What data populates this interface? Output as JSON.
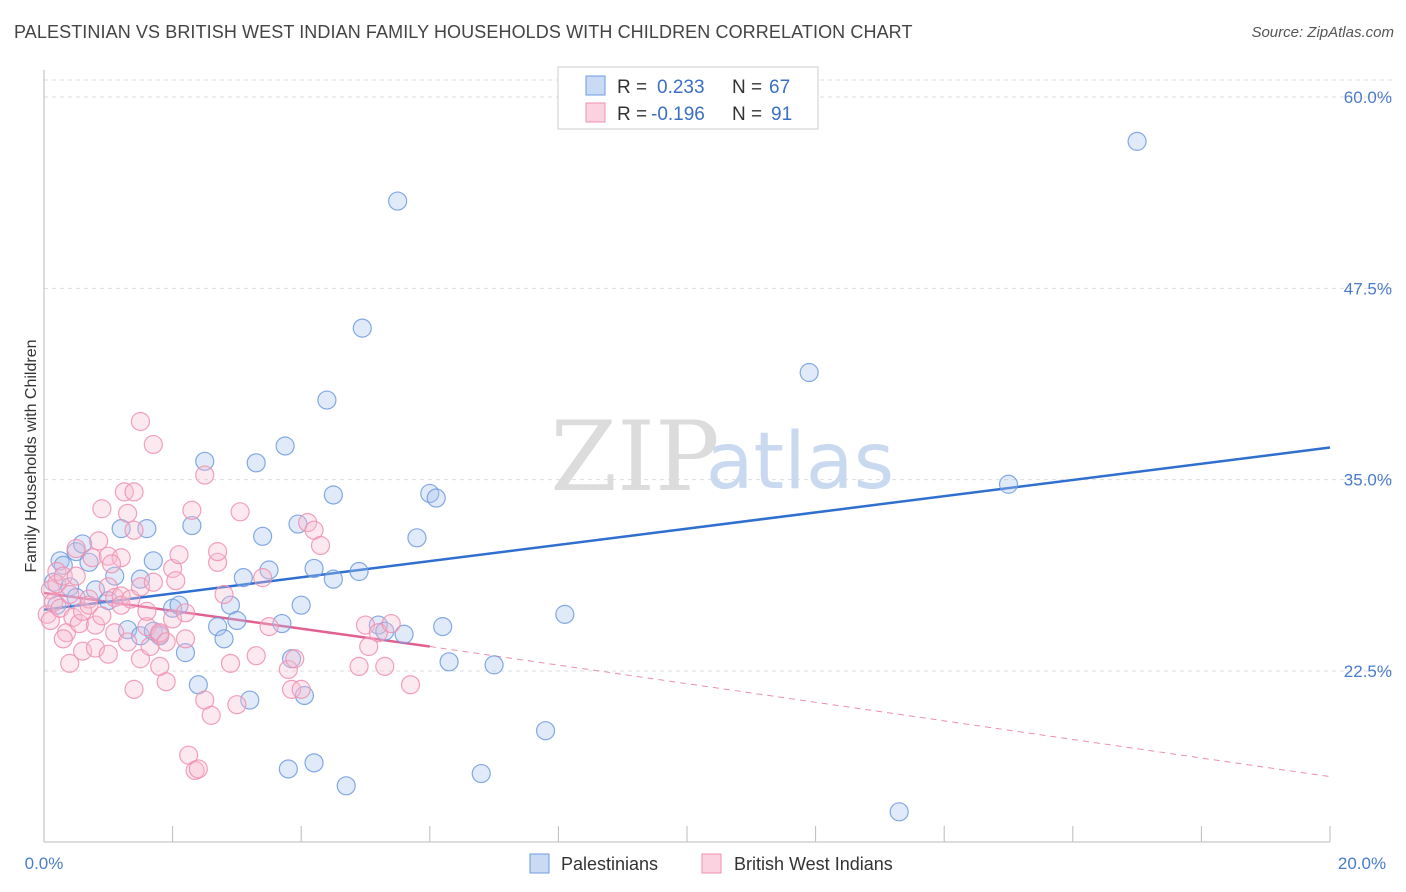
{
  "title": "PALESTINIAN VS BRITISH WEST INDIAN FAMILY HOUSEHOLDS WITH CHILDREN CORRELATION CHART",
  "source": "Source: ZipAtlas.com",
  "watermark": {
    "zip": "ZIP",
    "atlas": "atlas"
  },
  "chart_data": {
    "type": "scatter",
    "ylabel": "Family Households with Children",
    "x_tick_labels": [
      "0.0%",
      "20.0%"
    ],
    "y_tick_labels": [
      "60.0%",
      "47.5%",
      "35.0%",
      "22.5%"
    ],
    "y_ticks": [
      60.0,
      47.5,
      35.0,
      22.5
    ],
    "xlim": [
      0,
      20
    ],
    "ylim": [
      11.9,
      62.4
    ],
    "grid": true,
    "legend": {
      "placement": "top-center",
      "entries": [
        {
          "r_label": "R =",
          "r_value": "0.233",
          "n_label": "N =",
          "n_value": "67"
        },
        {
          "r_label": "R =",
          "r_value": "-0.196",
          "n_label": "N =",
          "n_value": "91"
        }
      ]
    },
    "colors": {
      "blue": "#6f9be0",
      "blue_line": "#2f6fd0",
      "pink": "#f08fb0",
      "pink_line": "#e06090"
    },
    "series": [
      {
        "name": "Palestinians",
        "color": "#6f9be0",
        "trend": {
          "x": [
            0,
            20
          ],
          "y": [
            26.5,
            37.1
          ]
        },
        "points": [
          [
            0.2,
            26.8
          ],
          [
            0.25,
            29.7
          ],
          [
            0.3,
            29.4
          ],
          [
            0.4,
            28.0
          ],
          [
            0.5,
            27.3
          ],
          [
            0.5,
            30.3
          ],
          [
            0.6,
            30.8
          ],
          [
            0.7,
            29.6
          ],
          [
            0.8,
            27.8
          ],
          [
            1.0,
            27.1
          ],
          [
            1.1,
            28.7
          ],
          [
            1.2,
            31.8
          ],
          [
            1.3,
            25.2
          ],
          [
            1.5,
            28.5
          ],
          [
            1.5,
            24.8
          ],
          [
            1.6,
            31.8
          ],
          [
            1.7,
            25.1
          ],
          [
            1.7,
            29.7
          ],
          [
            1.8,
            24.8
          ],
          [
            2.0,
            26.6
          ],
          [
            2.1,
            26.8
          ],
          [
            2.2,
            23.7
          ],
          [
            2.3,
            32.0
          ],
          [
            2.4,
            21.6
          ],
          [
            2.5,
            36.2
          ],
          [
            2.7,
            25.4
          ],
          [
            2.8,
            24.6
          ],
          [
            2.9,
            26.8
          ],
          [
            3.0,
            25.8
          ],
          [
            3.1,
            28.6
          ],
          [
            3.2,
            20.6
          ],
          [
            3.3,
            36.1
          ],
          [
            3.4,
            31.3
          ],
          [
            3.5,
            29.1
          ],
          [
            3.7,
            25.6
          ],
          [
            3.75,
            37.2
          ],
          [
            3.8,
            16.1
          ],
          [
            3.85,
            23.3
          ],
          [
            3.95,
            32.1
          ],
          [
            4.0,
            26.8
          ],
          [
            4.05,
            20.9
          ],
          [
            4.2,
            16.5
          ],
          [
            4.2,
            29.2
          ],
          [
            4.4,
            40.2
          ],
          [
            4.5,
            34.0
          ],
          [
            4.5,
            28.5
          ],
          [
            4.7,
            15.0
          ],
          [
            4.9,
            29.0
          ],
          [
            4.95,
            44.9
          ],
          [
            5.2,
            25.5
          ],
          [
            5.3,
            25.1
          ],
          [
            5.5,
            53.2
          ],
          [
            5.6,
            24.9
          ],
          [
            5.8,
            31.2
          ],
          [
            6.0,
            34.1
          ],
          [
            6.1,
            33.8
          ],
          [
            6.2,
            25.4
          ],
          [
            6.3,
            23.1
          ],
          [
            6.8,
            15.8
          ],
          [
            7.0,
            22.9
          ],
          [
            7.8,
            18.6
          ],
          [
            8.1,
            26.2
          ],
          [
            11.9,
            42.0
          ],
          [
            13.3,
            13.3
          ],
          [
            15.0,
            34.7
          ],
          [
            17.0,
            57.1
          ],
          [
            0.15,
            28.3
          ]
        ]
      },
      {
        "name": "British West Indians",
        "color": "#f08fb0",
        "trend": {
          "x": [
            0,
            6
          ],
          "y": [
            27.6,
            24.1
          ]
        },
        "trend_dashed": {
          "x": [
            6,
            20
          ],
          "y": [
            24.1,
            15.6
          ]
        },
        "points": [
          [
            0.05,
            26.2
          ],
          [
            0.1,
            27.8
          ],
          [
            0.1,
            25.8
          ],
          [
            0.15,
            27.0
          ],
          [
            0.2,
            28.2
          ],
          [
            0.2,
            29.0
          ],
          [
            0.25,
            26.6
          ],
          [
            0.3,
            28.7
          ],
          [
            0.35,
            25.0
          ],
          [
            0.4,
            27.5
          ],
          [
            0.4,
            23.0
          ],
          [
            0.45,
            26.0
          ],
          [
            0.5,
            30.5
          ],
          [
            0.5,
            28.7
          ],
          [
            0.55,
            25.6
          ],
          [
            0.6,
            26.4
          ],
          [
            0.6,
            23.8
          ],
          [
            0.7,
            27.2
          ],
          [
            0.7,
            26.8
          ],
          [
            0.75,
            29.9
          ],
          [
            0.8,
            24.0
          ],
          [
            0.8,
            25.5
          ],
          [
            0.85,
            31.0
          ],
          [
            0.9,
            26.1
          ],
          [
            0.9,
            33.1
          ],
          [
            1.0,
            30.0
          ],
          [
            1.0,
            28.0
          ],
          [
            1.0,
            23.6
          ],
          [
            1.1,
            27.3
          ],
          [
            1.1,
            25.0
          ],
          [
            1.2,
            29.9
          ],
          [
            1.2,
            27.4
          ],
          [
            1.2,
            26.8
          ],
          [
            1.25,
            34.2
          ],
          [
            1.3,
            32.8
          ],
          [
            1.3,
            24.4
          ],
          [
            1.35,
            27.2
          ],
          [
            1.4,
            31.7
          ],
          [
            1.4,
            34.2
          ],
          [
            1.4,
            21.3
          ],
          [
            1.5,
            38.8
          ],
          [
            1.5,
            28.0
          ],
          [
            1.5,
            23.3
          ],
          [
            1.6,
            25.4
          ],
          [
            1.6,
            26.4
          ],
          [
            1.65,
            24.1
          ],
          [
            1.7,
            28.3
          ],
          [
            1.7,
            37.3
          ],
          [
            1.8,
            24.9
          ],
          [
            1.8,
            22.8
          ],
          [
            1.8,
            25.0
          ],
          [
            1.9,
            24.4
          ],
          [
            1.9,
            21.8
          ],
          [
            2.0,
            29.2
          ],
          [
            2.0,
            25.9
          ],
          [
            2.05,
            28.4
          ],
          [
            2.1,
            30.1
          ],
          [
            2.2,
            26.3
          ],
          [
            2.2,
            24.6
          ],
          [
            2.25,
            17.0
          ],
          [
            2.3,
            33.0
          ],
          [
            2.35,
            16.0
          ],
          [
            2.4,
            16.1
          ],
          [
            2.5,
            20.6
          ],
          [
            2.5,
            35.3
          ],
          [
            2.6,
            19.6
          ],
          [
            2.7,
            29.6
          ],
          [
            2.7,
            30.3
          ],
          [
            2.8,
            27.5
          ],
          [
            2.9,
            23.0
          ],
          [
            3.0,
            20.3
          ],
          [
            3.05,
            32.9
          ],
          [
            3.3,
            23.5
          ],
          [
            3.4,
            28.6
          ],
          [
            3.5,
            25.4
          ],
          [
            3.8,
            22.6
          ],
          [
            3.85,
            21.3
          ],
          [
            3.9,
            23.3
          ],
          [
            4.0,
            21.3
          ],
          [
            4.1,
            32.2
          ],
          [
            4.2,
            31.7
          ],
          [
            4.3,
            30.7
          ],
          [
            4.9,
            22.8
          ],
          [
            5.0,
            25.5
          ],
          [
            5.05,
            24.1
          ],
          [
            5.2,
            25.0
          ],
          [
            5.4,
            25.6
          ],
          [
            5.3,
            22.8
          ],
          [
            5.7,
            21.6
          ],
          [
            0.3,
            24.6
          ],
          [
            1.05,
            29.5
          ]
        ]
      }
    ]
  }
}
